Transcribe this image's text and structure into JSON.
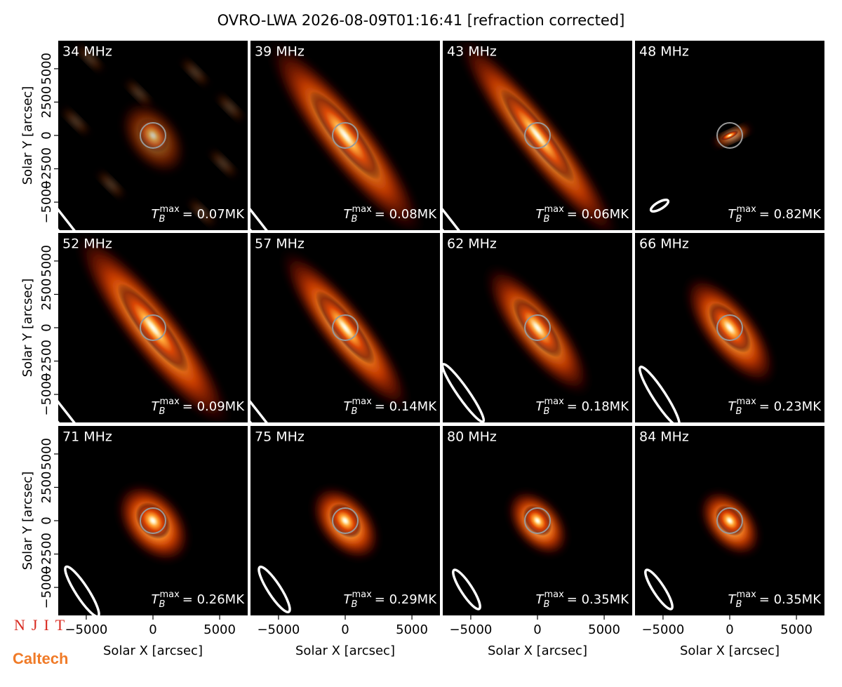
{
  "title": "OVRO-LWA 2026-08-09T01:16:41 [refraction corrected]",
  "axes": {
    "xlabel": "Solar X [arcsec]",
    "ylabel": "Solar Y [arcsec]",
    "xlim": [
      -7100,
      7100
    ],
    "ylim": [
      -7100,
      7100
    ],
    "xticks": [
      {
        "value": -5000,
        "label": "−5000"
      },
      0,
      5000
    ],
    "yticks": [
      {
        "value": -5000,
        "label": "−5000"
      },
      {
        "value": -2500,
        "label": "−2500"
      },
      0,
      2500,
      5000
    ]
  },
  "tb_symbol": {
    "base": "T",
    "sub": "B",
    "sup": "max"
  },
  "chart_data": [
    {
      "type": "image",
      "title": "34 MHz",
      "annotation": "= 0.07MK"
    },
    {
      "type": "image",
      "title": "39 MHz",
      "annotation": "= 0.08MK"
    },
    {
      "type": "image",
      "title": "43 MHz",
      "annotation": "= 0.06MK"
    },
    {
      "type": "image",
      "title": "48 MHz",
      "annotation": "= 0.82MK"
    },
    {
      "type": "image",
      "title": "52 MHz",
      "annotation": "= 0.09MK"
    },
    {
      "type": "image",
      "title": "57 MHz",
      "annotation": "= 0.14MK"
    },
    {
      "type": "image",
      "title": "62 MHz",
      "annotation": "= 0.18MK"
    },
    {
      "type": "image",
      "title": "66 MHz",
      "annotation": "= 0.23MK"
    },
    {
      "type": "image",
      "title": "71 MHz",
      "annotation": "= 0.26MK"
    },
    {
      "type": "image",
      "title": "75 MHz",
      "annotation": "= 0.29MK"
    },
    {
      "type": "image",
      "title": "80 MHz",
      "annotation": "= 0.35MK"
    },
    {
      "type": "image",
      "title": "84 MHz",
      "annotation": "= 0.35MK"
    }
  ],
  "logos": {
    "njit": "NJIT",
    "caltech": "Caltech"
  }
}
